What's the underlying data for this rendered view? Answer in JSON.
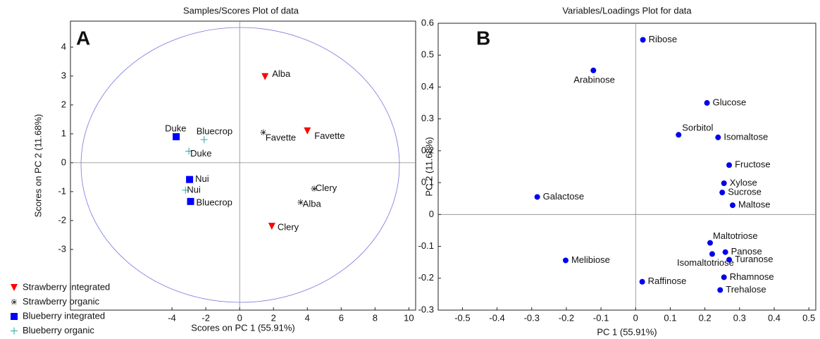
{
  "chart_data": [
    {
      "type": "scatter",
      "panel_label": "A",
      "title": "Samples/Scores Plot of data",
      "xlabel": "Scores on PC 1 (55.91%)",
      "ylabel": "Scores on PC 2 (11.68%)",
      "xlim": [
        -10,
        10.4
      ],
      "ylim": [
        -5.1,
        4.9
      ],
      "xticks": [
        -4,
        -2,
        0,
        2,
        4,
        6,
        8,
        10
      ],
      "yticks": [
        -3,
        -2,
        -1,
        0,
        1,
        2,
        3,
        4
      ],
      "legend": "lower left",
      "series": [
        {
          "name": "Strawberry integrated",
          "color": "#ff0000",
          "marker": "triangle-down",
          "x": [
            1.5,
            4.0,
            1.9
          ],
          "values": [
            2.98,
            1.1,
            -2.2
          ],
          "labels": [
            "Alba",
            "Favette",
            "Clery"
          ]
        },
        {
          "name": "Strawberry organic",
          "color": "#222222",
          "marker": "star",
          "x": [
            1.4,
            4.4,
            3.6
          ],
          "values": [
            1.05,
            -0.9,
            -1.37
          ],
          "labels": [
            "Favette",
            "Clery",
            "Alba"
          ]
        },
        {
          "name": "Blueberry integrated",
          "color": "#0000ff",
          "marker": "square",
          "x": [
            -3.75,
            -2.96,
            -2.9
          ],
          "values": [
            0.9,
            -0.58,
            -1.34
          ],
          "labels": [
            "Duke",
            "Nui",
            "Bluecrop"
          ]
        },
        {
          "name": "Blueberry organic",
          "color": "#2aa6a6",
          "marker": "plus",
          "x": [
            -2.1,
            -3.0,
            -3.2
          ],
          "values": [
            0.8,
            0.4,
            -0.95
          ],
          "labels": [
            "Bluecrop",
            "Duke",
            "Nui"
          ]
        }
      ]
    },
    {
      "type": "scatter",
      "panel_label": "B",
      "title": "Variables/Loadings Plot for data",
      "xlabel": "PC 1 (55.91%)",
      "ylabel": "PC 2 (11.68%)",
      "xlim": [
        -0.57,
        0.52
      ],
      "ylim": [
        -0.3,
        0.6
      ],
      "xticks": [
        -0.5,
        -0.4,
        -0.3,
        -0.2,
        -0.1,
        0,
        0.1,
        0.2,
        0.3,
        0.4,
        0.5
      ],
      "yticks": [
        -0.3,
        -0.2,
        -0.1,
        0,
        0.1,
        0.2,
        0.3,
        0.4,
        0.5,
        0.6
      ],
      "series": [
        {
          "color": "#0000ee",
          "marker": "circle",
          "x": [
            0.021,
            -0.122,
            0.206,
            0.124,
            0.238,
            0.27,
            0.255,
            0.25,
            0.28,
            -0.284,
            0.215,
            0.259,
            0.221,
            0.27,
            -0.202,
            0.255,
            0.019,
            0.244
          ],
          "values": [
            0.548,
            0.452,
            0.35,
            0.25,
            0.242,
            0.155,
            0.098,
            0.069,
            0.029,
            0.055,
            -0.089,
            -0.118,
            -0.124,
            -0.142,
            -0.144,
            -0.197,
            -0.211,
            -0.237
          ],
          "labels": [
            "Ribose",
            "Arabinose",
            "Glucose",
            "Sorbitol",
            "Isomaltose",
            "Fructose",
            "Xylose",
            "Sucrose",
            "Maltose",
            "Galactose",
            "Maltotriose",
            "Panose",
            "Isomaltotriose",
            "Turanose",
            "Melibiose",
            "Rhamnose",
            "Raffinose",
            "Trehalose"
          ]
        }
      ]
    }
  ]
}
